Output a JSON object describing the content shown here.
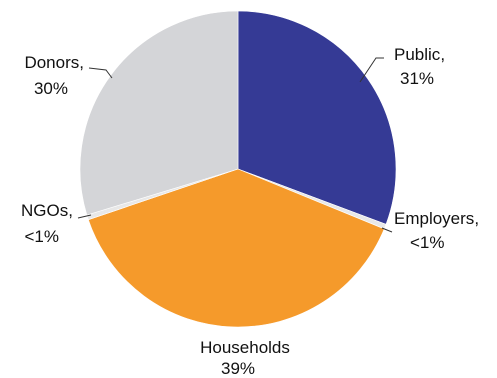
{
  "chart_data": {
    "type": "pie",
    "title": "",
    "start_angle_deg": 0,
    "direction": "clockwise",
    "slices": [
      {
        "name": "Public",
        "value": 31,
        "value_label": "31%",
        "color": "#353a95"
      },
      {
        "name": "Employers",
        "value": 0.5,
        "value_label": "<1%",
        "color": "#e8e8e8"
      },
      {
        "name": "Households",
        "value": 39,
        "value_label": "39%",
        "color": "#f59a2b"
      },
      {
        "name": "NGOs",
        "value": 0.5,
        "value_label": "<1%",
        "color": "#e8e8e8"
      },
      {
        "name": "Donors",
        "value": 30,
        "value_label": "30%",
        "color": "#d4d5d8"
      }
    ]
  }
}
